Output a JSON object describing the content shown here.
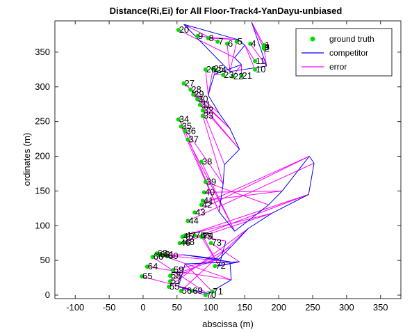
{
  "chart_data": {
    "type": "scatter",
    "title": "Distance(Ri,Ei) for All Floor-Track4-YanDayu-unbiased",
    "xlabel": "abscissa (m)",
    "ylabel": "ordinates (m)",
    "xlim": [
      -130,
      380
    ],
    "ylim": [
      -5,
      395
    ],
    "xticks": [
      -100,
      -50,
      0,
      50,
      100,
      150,
      200,
      250,
      300,
      350
    ],
    "yticks": [
      0,
      50,
      100,
      150,
      200,
      250,
      300,
      350
    ],
    "grid": false,
    "legend_position": "top-right",
    "legend": [
      {
        "label": "ground truth",
        "color": "#00dd00",
        "kind": "marker"
      },
      {
        "label": "competitor",
        "color": "#0000ee",
        "kind": "line"
      },
      {
        "label": "error",
        "color": "#ff00ff",
        "kind": "line"
      }
    ],
    "ground_truth": [
      {
        "id": "1",
        "x": 178,
        "y": 360
      },
      {
        "id": "2",
        "x": 178,
        "y": 355
      },
      {
        "id": "3",
        "x": 178,
        "y": 357
      },
      {
        "id": "4",
        "x": 158,
        "y": 362
      },
      {
        "id": "5",
        "x": 138,
        "y": 365
      },
      {
        "id": "6",
        "x": 124,
        "y": 362
      },
      {
        "id": "7",
        "x": 110,
        "y": 365
      },
      {
        "id": "8",
        "x": 96,
        "y": 370
      },
      {
        "id": "9",
        "x": 80,
        "y": 373
      },
      {
        "id": "10",
        "x": 165,
        "y": 325
      },
      {
        "id": "11",
        "x": 165,
        "y": 337
      },
      {
        "id": "20",
        "x": 52,
        "y": 382
      },
      {
        "id": "21",
        "x": 145,
        "y": 316
      },
      {
        "id": "22",
        "x": 132,
        "y": 315
      },
      {
        "id": "23",
        "x": 118,
        "y": 317
      },
      {
        "id": "24",
        "x": 107,
        "y": 324
      },
      {
        "id": "25",
        "x": 103,
        "y": 326
      },
      {
        "id": "26",
        "x": 92,
        "y": 325
      },
      {
        "id": "27",
        "x": 60,
        "y": 305
      },
      {
        "id": "28",
        "x": 70,
        "y": 296
      },
      {
        "id": "29",
        "x": 74,
        "y": 289
      },
      {
        "id": "30",
        "x": 80,
        "y": 282
      },
      {
        "id": "31",
        "x": 84,
        "y": 274
      },
      {
        "id": "32",
        "x": 88,
        "y": 266
      },
      {
        "id": "33",
        "x": 88,
        "y": 258
      },
      {
        "id": "34",
        "x": 52,
        "y": 253
      },
      {
        "id": "35",
        "x": 56,
        "y": 243
      },
      {
        "id": "36",
        "x": 62,
        "y": 236
      },
      {
        "id": "37",
        "x": 66,
        "y": 224
      },
      {
        "id": "38",
        "x": 86,
        "y": 192
      },
      {
        "id": "39",
        "x": 92,
        "y": 163
      },
      {
        "id": "40",
        "x": 90,
        "y": 148
      },
      {
        "id": "41",
        "x": 88,
        "y": 136
      },
      {
        "id": "42",
        "x": 86,
        "y": 130
      },
      {
        "id": "43",
        "x": 76,
        "y": 119
      },
      {
        "id": "44",
        "x": 66,
        "y": 107
      },
      {
        "id": "45",
        "x": 58,
        "y": 84
      },
      {
        "id": "46",
        "x": 54,
        "y": 75
      },
      {
        "id": "47",
        "x": 62,
        "y": 86
      },
      {
        "id": "48",
        "x": 60,
        "y": 76
      },
      {
        "id": "55",
        "x": 38,
        "y": 12
      },
      {
        "id": "56",
        "x": 56,
        "y": 6
      },
      {
        "id": "57",
        "x": 40,
        "y": 20
      },
      {
        "id": "58",
        "x": 40,
        "y": 28
      },
      {
        "id": "59",
        "x": 44,
        "y": 36
      },
      {
        "id": "60",
        "x": 36,
        "y": 56
      },
      {
        "id": "61",
        "x": 30,
        "y": 58
      },
      {
        "id": "62",
        "x": 24,
        "y": 58
      },
      {
        "id": "63",
        "x": 20,
        "y": 60
      },
      {
        "id": "64",
        "x": 6,
        "y": 41
      },
      {
        "id": "65",
        "x": -2,
        "y": 27
      },
      {
        "id": "66",
        "x": 14,
        "y": 55
      },
      {
        "id": "69",
        "x": 72,
        "y": 6
      },
      {
        "id": "70",
        "x": 92,
        "y": 0
      },
      {
        "id": "71",
        "x": 102,
        "y": 5
      },
      {
        "id": "72",
        "x": 106,
        "y": 42
      },
      {
        "id": "73",
        "x": 100,
        "y": 75
      },
      {
        "id": "74",
        "x": 88,
        "y": 85
      },
      {
        "id": "75",
        "x": 86,
        "y": 84
      },
      {
        "id": "76",
        "x": 76,
        "y": 86
      }
    ],
    "competitor": [
      {
        "x": 160,
        "y": 393
      },
      {
        "x": 182,
        "y": 330
      },
      {
        "x": 128,
        "y": 322
      },
      {
        "x": 60,
        "y": 390
      },
      {
        "x": 140,
        "y": 368
      },
      {
        "x": 150,
        "y": 360
      },
      {
        "x": 135,
        "y": 342
      },
      {
        "x": 145,
        "y": 332
      },
      {
        "x": 105,
        "y": 318
      },
      {
        "x": 96,
        "y": 288
      },
      {
        "x": 112,
        "y": 262
      },
      {
        "x": 128,
        "y": 240
      },
      {
        "x": 142,
        "y": 210
      },
      {
        "x": 120,
        "y": 188
      },
      {
        "x": 118,
        "y": 160
      },
      {
        "x": 112,
        "y": 120
      },
      {
        "x": 135,
        "y": 92
      },
      {
        "x": 185,
        "y": 130
      },
      {
        "x": 205,
        "y": 150
      },
      {
        "x": 245,
        "y": 200
      },
      {
        "x": 252,
        "y": 190
      },
      {
        "x": 244,
        "y": 145
      },
      {
        "x": 190,
        "y": 118
      },
      {
        "x": 155,
        "y": 96
      },
      {
        "x": 130,
        "y": 70
      },
      {
        "x": 112,
        "y": 52
      },
      {
        "x": 60,
        "y": 58
      },
      {
        "x": 128,
        "y": 48
      },
      {
        "x": 130,
        "y": 22
      },
      {
        "x": 95,
        "y": 2
      },
      {
        "x": 52,
        "y": 12
      },
      {
        "x": 62,
        "y": 45
      },
      {
        "x": 142,
        "y": 48
      },
      {
        "x": 112,
        "y": 42
      },
      {
        "x": 122,
        "y": 78
      }
    ]
  }
}
